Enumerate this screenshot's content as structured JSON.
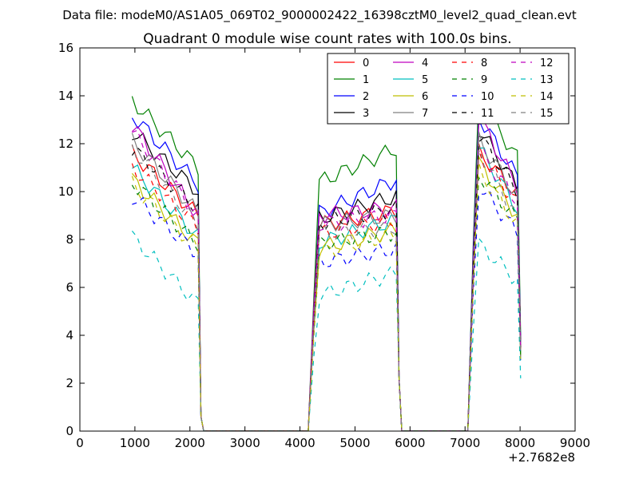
{
  "suptitle": "Data file: modeM0/AS1A05_069T02_9000002422_16398cztM0_level2_quad_clean.evt",
  "chart_data": {
    "type": "line",
    "title": "Quadrant 0 module wise count rates with 100.0s bins.",
    "xlabel": "",
    "ylabel": "",
    "x_offset_label": "+2.7682e8",
    "xlim": [
      0,
      9000
    ],
    "ylim": [
      0,
      16
    ],
    "xticks": [
      0,
      1000,
      2000,
      3000,
      4000,
      5000,
      6000,
      7000,
      8000,
      9000
    ],
    "yticks": [
      0,
      2,
      4,
      6,
      8,
      10,
      12,
      14,
      16
    ],
    "xtick_labels": [
      "0",
      "1000",
      "2000",
      "3000",
      "4000",
      "5000",
      "6000",
      "7000",
      "8000",
      "9000"
    ],
    "ytick_labels": [
      "0",
      "2",
      "4",
      "6",
      "8",
      "10",
      "12",
      "14",
      "16"
    ],
    "grid": false,
    "legend_position": "top-right",
    "legend_columns": 4,
    "x_segments": [
      {
        "start": 950,
        "step": 100,
        "count": 13
      },
      {
        "start": 4250,
        "step": 100,
        "count": 16
      },
      {
        "start": 7150,
        "step": 100,
        "count": 9
      }
    ],
    "series": [
      {
        "name": "0",
        "color": "#ff0000",
        "dash": "solid",
        "seg_levels": [
          [
            11.6,
            9.0
          ],
          [
            8.6,
            9.2
          ],
          [
            11.9,
            9.9
          ]
        ]
      },
      {
        "name": "1",
        "color": "#008000",
        "dash": "solid",
        "seg_levels": [
          [
            13.8,
            11.0
          ],
          [
            10.3,
            11.8
          ],
          [
            14.2,
            11.4
          ]
        ]
      },
      {
        "name": "2",
        "color": "#0000ff",
        "dash": "solid",
        "seg_levels": [
          [
            13.2,
            10.3
          ],
          [
            9.0,
            10.5
          ],
          [
            13.5,
            10.6
          ]
        ]
      },
      {
        "name": "3",
        "color": "#000000",
        "dash": "solid",
        "seg_levels": [
          [
            12.5,
            10.0
          ],
          [
            8.8,
            9.8
          ],
          [
            13.0,
            10.2
          ]
        ]
      },
      {
        "name": "4",
        "color": "#bf00bf",
        "dash": "solid",
        "seg_levels": [
          [
            12.8,
            9.0
          ],
          [
            9.0,
            9.3
          ],
          [
            13.5,
            10.2
          ]
        ]
      },
      {
        "name": "5",
        "color": "#00bfbf",
        "dash": "solid",
        "seg_levels": [
          [
            11.0,
            8.1
          ],
          [
            7.8,
            8.8
          ],
          [
            12.2,
            9.3
          ]
        ]
      },
      {
        "name": "6",
        "color": "#bfbf00",
        "dash": "solid",
        "seg_levels": [
          [
            10.5,
            7.8
          ],
          [
            7.6,
            8.4
          ],
          [
            11.5,
            9.0
          ]
        ]
      },
      {
        "name": "7",
        "color": "#808080",
        "dash": "solid",
        "seg_levels": [
          [
            12.1,
            9.1
          ],
          [
            8.6,
            9.0
          ],
          [
            12.5,
            9.8
          ]
        ]
      },
      {
        "name": "8",
        "color": "#ff0000",
        "dash": "dashed",
        "seg_levels": [
          [
            11.0,
            8.5
          ],
          [
            8.2,
            8.8
          ],
          [
            11.9,
            9.5
          ]
        ]
      },
      {
        "name": "9",
        "color": "#008000",
        "dash": "dashed",
        "seg_levels": [
          [
            10.4,
            7.8
          ],
          [
            7.8,
            8.3
          ],
          [
            11.0,
            8.8
          ]
        ]
      },
      {
        "name": "10",
        "color": "#0000ff",
        "dash": "dashed",
        "seg_levels": [
          [
            9.8,
            7.4
          ],
          [
            7.0,
            7.6
          ],
          [
            10.5,
            8.3
          ]
        ]
      },
      {
        "name": "11",
        "color": "#000000",
        "dash": "dashed",
        "seg_levels": [
          [
            11.8,
            9.3
          ],
          [
            8.6,
            9.3
          ],
          [
            12.7,
            10.0
          ]
        ]
      },
      {
        "name": "12",
        "color": "#bf00bf",
        "dash": "dashed",
        "seg_levels": [
          [
            12.5,
            9.0
          ],
          [
            8.6,
            9.0
          ],
          [
            12.0,
            9.6
          ]
        ]
      },
      {
        "name": "13",
        "color": "#00bfbf",
        "dash": "dashed",
        "seg_levels": [
          [
            8.1,
            5.3
          ],
          [
            5.6,
            6.6
          ],
          [
            8.0,
            6.3
          ]
        ]
      },
      {
        "name": "14",
        "color": "#bfbf00",
        "dash": "dashed",
        "seg_levels": [
          [
            10.3,
            7.6
          ],
          [
            7.4,
            8.2
          ],
          [
            11.2,
            8.6
          ]
        ]
      },
      {
        "name": "15",
        "color": "#808080",
        "dash": "dashed",
        "seg_levels": [
          [
            11.8,
            8.6
          ],
          [
            8.2,
            8.5
          ],
          [
            12.2,
            8.9
          ]
        ]
      }
    ]
  }
}
